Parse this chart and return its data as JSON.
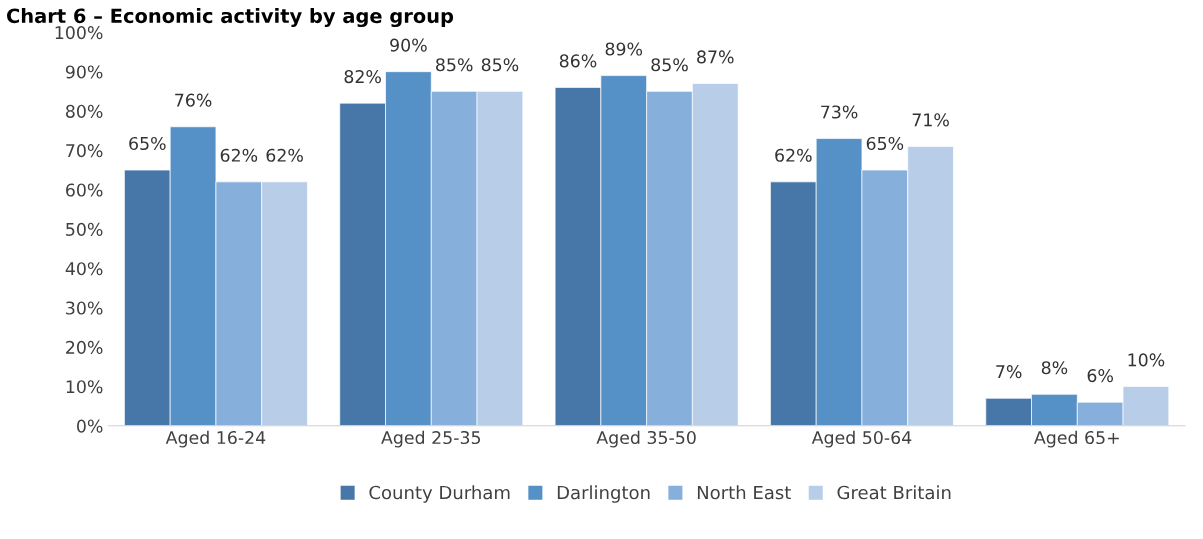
{
  "chart_data": {
    "type": "bar",
    "title": "Chart 6 – Economic activity by age group",
    "categories": [
      "Aged 16-24",
      "Aged 25-35",
      "Aged 35-50",
      "Aged 50-64",
      "Aged 65+"
    ],
    "series": [
      {
        "name": "County Durham",
        "color": "#4677a8",
        "values": [
          65,
          82,
          86,
          62,
          7
        ],
        "value_labels": [
          "65%",
          "82%",
          "86%",
          "62%",
          "7%"
        ]
      },
      {
        "name": "Darlington",
        "color": "#5590c7",
        "values": [
          76,
          90,
          89,
          73,
          8
        ],
        "value_labels": [
          "76%",
          "90%",
          "89%",
          "73%",
          "8%"
        ]
      },
      {
        "name": "North East",
        "color": "#86afdc",
        "values": [
          62,
          85,
          85,
          65,
          6
        ],
        "value_labels": [
          "62%",
          "85%",
          "85%",
          "65%",
          "6%"
        ]
      },
      {
        "name": "Great Britain",
        "color": "#b8cde8",
        "values": [
          62,
          85,
          87,
          71,
          10
        ],
        "value_labels": [
          "62%",
          "85%",
          "87%",
          "71%",
          "10%"
        ]
      }
    ],
    "ylim": [
      0,
      100
    ],
    "yticks": [
      {
        "value": 0,
        "label": "0%"
      },
      {
        "value": 10,
        "label": "10%"
      },
      {
        "value": 20,
        "label": "20%"
      },
      {
        "value": 30,
        "label": "30%"
      },
      {
        "value": 40,
        "label": "40%"
      },
      {
        "value": 50,
        "label": "50%"
      },
      {
        "value": 60,
        "label": "60%"
      },
      {
        "value": 70,
        "label": "70%"
      },
      {
        "value": 80,
        "label": "80%"
      },
      {
        "value": 90,
        "label": "90%"
      },
      {
        "value": 100,
        "label": "100%"
      }
    ],
    "grid": false,
    "legend": "bottom"
  }
}
